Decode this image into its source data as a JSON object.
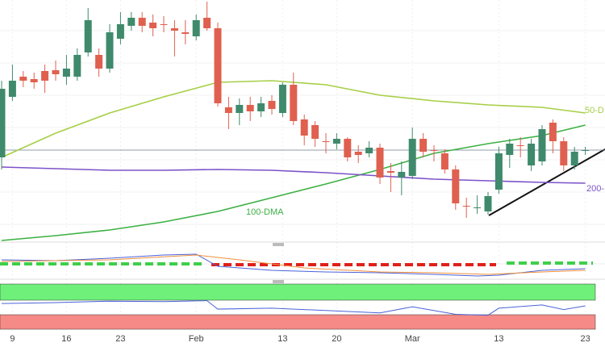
{
  "chart_data": [
    {
      "type": "candlestick",
      "categories": [
        null,
        "9",
        null,
        null,
        null,
        null,
        "16",
        null,
        null,
        null,
        null,
        "23",
        null,
        null,
        null,
        null,
        null,
        null,
        "Feb",
        null,
        null,
        null,
        null,
        null,
        null,
        null,
        "13",
        null,
        null,
        null,
        null,
        "20",
        null,
        null,
        null,
        null,
        null,
        null,
        "Mar",
        null,
        null,
        null,
        null,
        null,
        null,
        null,
        "13",
        null,
        null,
        null,
        null,
        null,
        null,
        null,
        "23"
      ],
      "open": [
        105,
        180,
        205,
        202,
        212,
        213,
        205,
        205,
        235,
        232,
        215,
        252,
        268,
        278,
        272,
        270,
        265,
        260,
        255,
        278,
        265,
        167,
        160,
        170,
        162,
        175,
        160,
        195,
        152,
        145,
        125,
        122,
        128,
        112,
        110,
        117,
        88,
        80,
        82,
        128,
        114,
        110,
        90,
        45,
        42,
        38,
        65,
        108,
        120,
        95,
        100,
        148,
        125,
        95,
        113
      ],
      "high": [
        200,
        220,
        212,
        210,
        220,
        225,
        232,
        240,
        290,
        240,
        270,
        285,
        285,
        285,
        282,
        280,
        275,
        275,
        282,
        298,
        272,
        180,
        178,
        180,
        180,
        182,
        198,
        210,
        158,
        150,
        135,
        135,
        130,
        120,
        125,
        122,
        98,
        100,
        142,
        135,
        120,
        115,
        95,
        55,
        58,
        62,
        118,
        128,
        130,
        128,
        145,
        152,
        130,
        118,
        118
      ],
      "low": [
        90,
        175,
        192,
        190,
        185,
        200,
        195,
        200,
        230,
        205,
        210,
        245,
        262,
        260,
        255,
        260,
        230,
        245,
        250,
        262,
        168,
        140,
        145,
        150,
        155,
        158,
        155,
        145,
        120,
        118,
        110,
        115,
        100,
        98,
        105,
        72,
        62,
        58,
        78,
        105,
        100,
        85,
        40,
        30,
        35,
        34,
        60,
        92,
        105,
        88,
        95,
        110,
        88,
        90,
        108
      ],
      "close": [
        190,
        200,
        200,
        198,
        200,
        208,
        215,
        232,
        275,
        215,
        260,
        270,
        278,
        268,
        265,
        269,
        262,
        258,
        275,
        265,
        172,
        160,
        170,
        162,
        172,
        165,
        195,
        150,
        132,
        128,
        124,
        128,
        105,
        108,
        117,
        80,
        86,
        87,
        128,
        112,
        113,
        90,
        48,
        44,
        43,
        57,
        110,
        122,
        119,
        122,
        140,
        125,
        95,
        112,
        114
      ],
      "up_color": "#3f8a6c",
      "down_color": "#e0604f",
      "ylim": [
        0,
        300
      ],
      "price_line": 114,
      "series": [
        {
          "name": "50-D",
          "color": "#a6cf45",
          "x": [
            0,
            5,
            10,
            15,
            20,
            25,
            30,
            35,
            40,
            45,
            50,
            54
          ],
          "values": [
            105,
            135,
            160,
            180,
            198,
            200,
            195,
            182,
            175,
            170,
            167,
            160
          ]
        },
        {
          "name": "100-DMA",
          "color": "#3cb043",
          "x": [
            0,
            5,
            10,
            15,
            20,
            25,
            30,
            35,
            40,
            45,
            50,
            54
          ],
          "values": [
            2,
            8,
            15,
            25,
            38,
            55,
            72,
            90,
            110,
            122,
            132,
            145
          ]
        },
        {
          "name": "200-",
          "color": "#7b52c9",
          "x": [
            0,
            5,
            10,
            15,
            20,
            25,
            30,
            35,
            40,
            45,
            50,
            54
          ],
          "values": [
            93,
            91,
            89,
            89,
            90,
            89,
            86,
            82,
            78,
            76,
            74,
            73
          ]
        }
      ]
    },
    {
      "type": "line",
      "ylim": [
        -20,
        20
      ],
      "series": [
        {
          "color": "#4a63d8",
          "x": [
            0,
            5,
            10,
            15,
            18,
            20,
            25,
            30,
            35,
            40,
            44,
            46,
            50,
            54
          ],
          "values": [
            5,
            4,
            7,
            11,
            12,
            -3,
            -8,
            -10,
            -11,
            -13,
            -15,
            -14,
            -8,
            -6
          ]
        },
        {
          "color": "#f0903c",
          "x": [
            0,
            10,
            18,
            22,
            28,
            35,
            40,
            45,
            50,
            54
          ],
          "values": [
            3,
            5,
            11,
            5,
            -5,
            -10,
            -11,
            -13,
            -10,
            -8
          ]
        }
      ]
    },
    {
      "type": "line",
      "ylim": [
        0,
        100
      ],
      "series": [
        {
          "color": "#4a63d8",
          "x": [
            0,
            5,
            10,
            15,
            19,
            20,
            25,
            30,
            35,
            38,
            42,
            45,
            46,
            50,
            52,
            54
          ],
          "values": [
            55,
            57,
            60,
            59,
            61,
            43,
            45,
            40,
            35,
            48,
            32,
            30,
            45,
            52,
            42,
            50
          ]
        }
      ]
    }
  ]
}
